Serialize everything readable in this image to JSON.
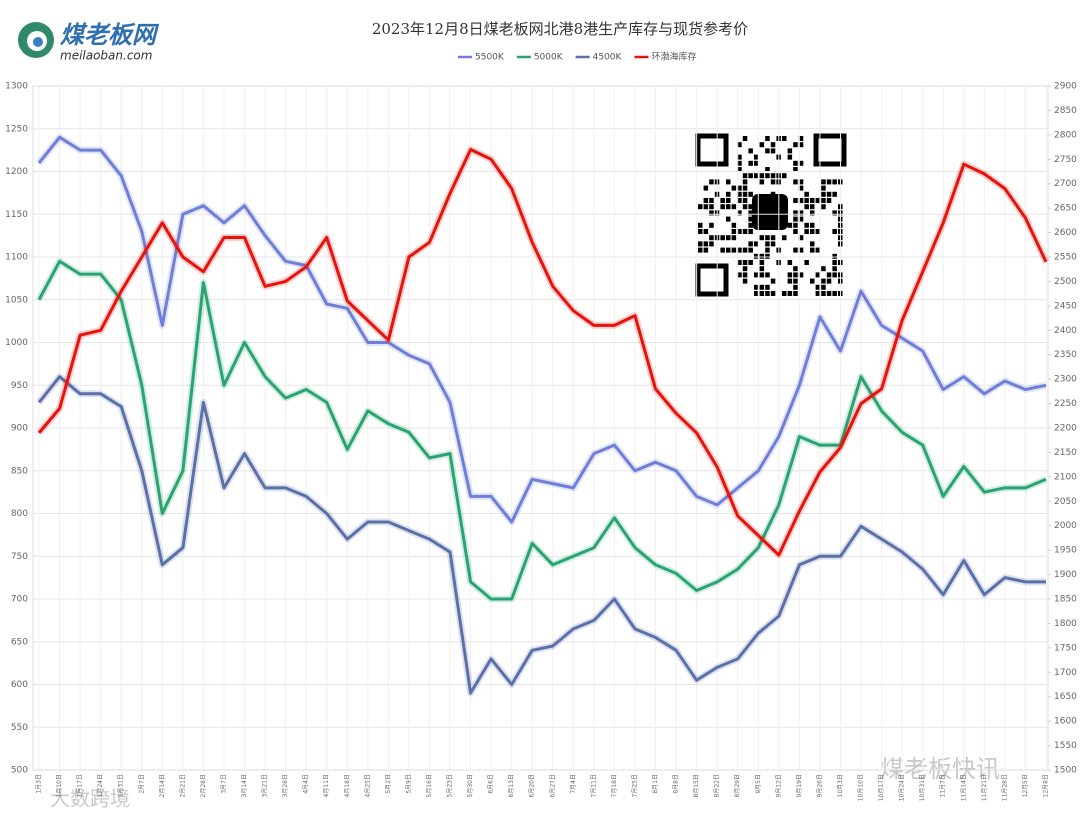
{
  "logo": {
    "name": "煤老板网",
    "url": "meilaoban.com"
  },
  "watermarks": [
    "煤老板快讯",
    "大数跨境"
  ],
  "chart_data": {
    "type": "line",
    "title": "2023年12月8日煤老板网北港8港生产库存与现货参考价",
    "categories": [
      "1月3日",
      "1月10日",
      "1月17日",
      "1月24日",
      "1月31日",
      "2月7日",
      "2月14日",
      "2月21日",
      "2月28日",
      "3月7日",
      "3月14日",
      "3月21日",
      "3月28日",
      "4月4日",
      "4月11日",
      "4月18日",
      "4月25日",
      "5月2日",
      "5月9日",
      "5月16日",
      "5月23日",
      "5月30日",
      "6月6日",
      "6月13日",
      "6月20日",
      "6月27日",
      "7月4日",
      "7月11日",
      "7月18日",
      "7月25日",
      "8月1日",
      "8月8日",
      "8月15日",
      "8月22日",
      "8月29日",
      "9月5日",
      "9月12日",
      "9月19日",
      "9月26日",
      "10月3日",
      "10月10日",
      "10月17日",
      "10月24日",
      "10月31日",
      "11月7日",
      "11月14日",
      "11月21日",
      "11月28日",
      "12月5日",
      "12月8日"
    ],
    "series": [
      {
        "name": "5500K",
        "color": "#6f7fd8",
        "values": [
          1210,
          1240,
          1225,
          1225,
          1195,
          1130,
          1020,
          1150,
          1160,
          1140,
          1160,
          1125,
          1095,
          1090,
          1045,
          1040,
          1000,
          1000,
          985,
          975,
          930,
          820,
          820,
          790,
          840,
          835,
          830,
          870,
          880,
          850,
          860,
          850,
          820,
          810,
          830,
          850,
          890,
          950,
          1030,
          990,
          1060,
          1020,
          1005,
          990,
          945,
          960,
          940,
          955,
          945,
          950
        ]
      },
      {
        "name": "5000K",
        "color": "#2aa372",
        "values": [
          1050,
          1095,
          1080,
          1080,
          1050,
          950,
          800,
          850,
          1070,
          950,
          1000,
          960,
          935,
          945,
          930,
          875,
          920,
          905,
          895,
          865,
          870,
          720,
          700,
          700,
          765,
          740,
          750,
          760,
          795,
          760,
          740,
          730,
          710,
          720,
          735,
          760,
          810,
          890,
          880,
          880,
          960,
          920,
          895,
          880,
          820,
          855,
          825,
          830,
          830,
          840
        ]
      },
      {
        "name": "4500K",
        "color": "#5b70a8",
        "values": [
          930,
          960,
          940,
          940,
          925,
          850,
          740,
          760,
          930,
          830,
          870,
          830,
          830,
          820,
          800,
          770,
          790,
          790,
          780,
          770,
          755,
          590,
          630,
          600,
          640,
          645,
          665,
          675,
          700,
          665,
          655,
          640,
          605,
          620,
          630,
          660,
          680,
          740,
          750,
          750,
          785,
          770,
          755,
          735,
          705,
          745,
          705,
          725,
          720,
          720
        ]
      },
      {
        "name": "环渤海库存",
        "color": "#e8120c",
        "axis": "y2",
        "values": [
          2190,
          2240,
          2390,
          2400,
          2480,
          2550,
          2620,
          2550,
          2520,
          2590,
          2590,
          2490,
          2500,
          2530,
          2590,
          2460,
          2420,
          2380,
          2550,
          2580,
          2680,
          2770,
          2750,
          2690,
          2580,
          2490,
          2440,
          2410,
          2410,
          2430,
          2280,
          2230,
          2190,
          2120,
          2020,
          1980,
          1940,
          2030,
          2110,
          2160,
          2250,
          2280,
          2420,
          2520,
          2620,
          2740,
          2720,
          2690,
          2630,
          2540
        ]
      }
    ],
    "ylim": [
      500,
      1300
    ],
    "yticks": [
      500,
      550,
      600,
      650,
      700,
      750,
      800,
      850,
      900,
      950,
      1000,
      1050,
      1100,
      1150,
      1200,
      1250,
      1300
    ],
    "y2lim": [
      1500,
      2900
    ],
    "y2ticks": [
      1500,
      1550,
      1600,
      1650,
      1700,
      1750,
      1800,
      1850,
      1900,
      1950,
      2000,
      2050,
      2100,
      2150,
      2200,
      2250,
      2300,
      2350,
      2400,
      2450,
      2500,
      2550,
      2600,
      2650,
      2700,
      2750,
      2800,
      2850,
      2900
    ],
    "grid": true,
    "legend": "top"
  }
}
